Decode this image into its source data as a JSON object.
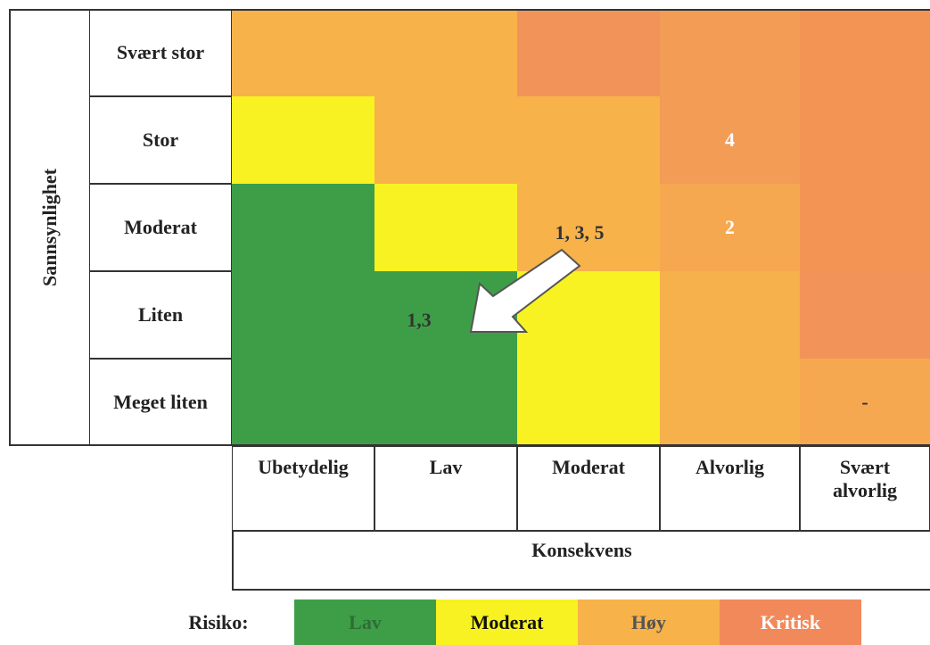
{
  "y_axis_title": "Sannsynlighet",
  "x_axis_title": "Konsekvens",
  "rows": [
    "Svært stor",
    "Stor",
    "Moderat",
    "Liten",
    "Meget liten"
  ],
  "columns": [
    "Ubetydelig",
    "Lav",
    "Moderat",
    "Alvorlig",
    "Svært alvorlig"
  ],
  "cells": [
    [
      {
        "color": "#f7b24a",
        "text": null
      },
      {
        "color": "#f7b24a",
        "text": null
      },
      {
        "color": "#f2935a",
        "text": null
      },
      {
        "color": "#f39c55",
        "text": null
      },
      {
        "color": "#f39455",
        "text": null
      }
    ],
    [
      {
        "color": "#f8f222",
        "text": null
      },
      {
        "color": "#f7b24a",
        "text": null
      },
      {
        "color": "#f7b24a",
        "text": null
      },
      {
        "color": "#f39c55",
        "text": "4"
      },
      {
        "color": "#f39455",
        "text": null
      }
    ],
    [
      {
        "color": "#3e9e48",
        "text": null
      },
      {
        "color": "#f8f222",
        "text": null
      },
      {
        "color": "#f7b24a",
        "text": "1, 3, 5"
      },
      {
        "color": "#f6a850",
        "text": "2"
      },
      {
        "color": "#f39455",
        "text": null
      }
    ],
    [
      {
        "color": "#3e9e48",
        "text": null
      },
      {
        "color": "#3e9e48",
        "text": "1,3"
      },
      {
        "color": "#f8f222",
        "text": null
      },
      {
        "color": "#f6b04c",
        "text": null
      },
      {
        "color": "#f2935a",
        "text": null
      }
    ],
    [
      {
        "color": "#3e9e48",
        "text": null
      },
      {
        "color": "#3e9e48",
        "text": null
      },
      {
        "color": "#f8f222",
        "text": null
      },
      {
        "color": "#f6b04c",
        "text": null
      },
      {
        "color": "#f6a850",
        "text": "-"
      }
    ]
  ],
  "legend": {
    "title": "Risiko:",
    "items": [
      {
        "label": "Lav",
        "color": "#3e9e48",
        "text_color": "#2d6e34"
      },
      {
        "label": "Moderat",
        "color": "#f8f222",
        "text_color": "#111111"
      },
      {
        "label": "Høy",
        "color": "#f7b24a",
        "text_color": "#555555"
      },
      {
        "label": "Kritisk",
        "color": "#f2895a",
        "text_color": "#ffffff"
      }
    ]
  }
}
